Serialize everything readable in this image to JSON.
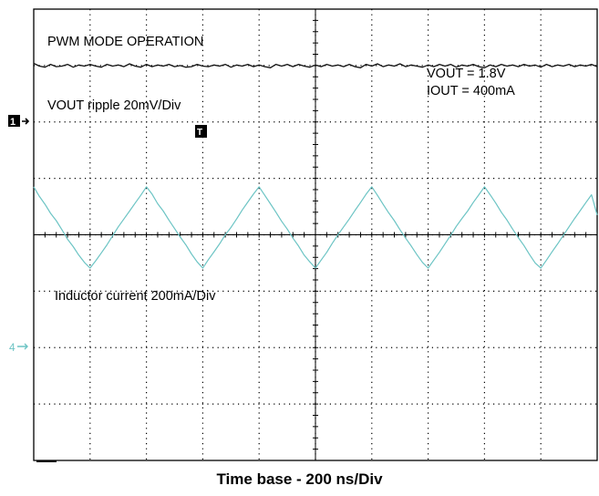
{
  "chart_data": {
    "type": "line",
    "title": "",
    "xlabel": "Time base - 200 ns/Div",
    "ylabel": "",
    "grid": true,
    "x_unit": "ns",
    "x": [
      0,
      20,
      40,
      60,
      80,
      100,
      120,
      140,
      160,
      180,
      200,
      220,
      240,
      260,
      280,
      300,
      320,
      340,
      360,
      380,
      400,
      420,
      440,
      460,
      480,
      500,
      520,
      540,
      560,
      580,
      600,
      620,
      640,
      660,
      680,
      700,
      720,
      740,
      760,
      780,
      800,
      820,
      840,
      860,
      880,
      900,
      920,
      940,
      960,
      980,
      1000,
      1020,
      1040,
      1060,
      1080,
      1100,
      1120,
      1140,
      1160,
      1180,
      1200,
      1220,
      1240,
      1260,
      1280,
      1300,
      1320,
      1340,
      1360,
      1380,
      1400,
      1420,
      1440,
      1460,
      1480,
      1500,
      1520,
      1540,
      1560,
      1580,
      1600,
      1620,
      1640,
      1660,
      1680,
      1700,
      1720,
      1740,
      1760,
      1780,
      1800,
      1820,
      1840,
      1860,
      1880,
      1900,
      1920,
      1940,
      1960,
      1980,
      2000
    ],
    "annotations": [
      "PWM MODE OPERATION",
      "VOUT = 1.8V",
      "IOUT = 400mA",
      "VOUT  ripple 20mV/Div",
      "Inductor current 200mA/Div"
    ],
    "markers": [
      "1",
      "4",
      "T"
    ],
    "series": [
      {
        "name": "VOUT  ripple 20mV/Div",
        "unit": "div",
        "values": [
          3.04,
          2.99,
          2.97,
          3.02,
          2.98,
          2.99,
          3.02,
          2.97,
          3.01,
          2.99,
          3.02,
          2.99,
          2.97,
          3.02,
          2.99,
          3.01,
          2.98,
          3.03,
          2.99,
          2.97,
          3.02,
          2.98,
          3.01,
          2.99,
          3.02,
          2.98,
          3.0,
          2.97,
          2.98,
          3.02,
          2.99,
          2.98,
          3.01,
          2.99,
          3.02,
          2.97,
          3.01,
          2.99,
          3.02,
          2.98,
          3.01,
          2.98,
          2.96,
          3.02,
          2.99,
          3.02,
          2.98,
          3.02,
          2.99,
          2.97,
          3.01,
          2.98,
          3.02,
          2.99,
          3.01,
          2.98,
          3.02,
          2.98,
          2.96,
          3.02,
          2.99,
          3.03,
          2.98,
          3.01,
          2.99,
          3.03,
          2.98,
          3.01,
          2.99,
          2.97,
          3.01,
          2.98,
          3.02,
          2.99,
          3.02,
          2.97,
          3.01,
          2.99,
          3.02,
          2.98,
          2.96,
          3.01,
          2.98,
          3.02,
          2.99,
          3.01,
          2.98,
          3.02,
          2.99,
          3.01,
          2.97,
          3.02,
          2.98,
          3.01,
          2.99,
          3.02,
          2.98,
          3.01,
          2.99,
          3.02,
          2.98
        ]
      },
      {
        "name": "Inductor current 200mA/Div",
        "unit": "div",
        "values": [
          0.85,
          0.68,
          0.54,
          0.38,
          0.25,
          0.09,
          -0.08,
          -0.21,
          -0.36,
          -0.49,
          -0.59,
          -0.46,
          -0.32,
          -0.18,
          -0.02,
          0.14,
          0.28,
          0.42,
          0.56,
          0.7,
          0.85,
          0.72,
          0.55,
          0.42,
          0.26,
          0.11,
          -0.04,
          -0.18,
          -0.34,
          -0.48,
          -0.59,
          -0.44,
          -0.3,
          -0.16,
          0.0,
          0.13,
          0.28,
          0.44,
          0.58,
          0.72,
          0.85,
          0.7,
          0.55,
          0.4,
          0.24,
          0.1,
          -0.06,
          -0.2,
          -0.36,
          -0.48,
          -0.59,
          -0.45,
          -0.31,
          -0.15,
          0.0,
          0.14,
          0.28,
          0.43,
          0.57,
          0.72,
          0.85,
          0.7,
          0.54,
          0.39,
          0.25,
          0.09,
          -0.06,
          -0.2,
          -0.35,
          -0.49,
          -0.59,
          -0.45,
          -0.31,
          -0.16,
          -0.01,
          0.15,
          0.29,
          0.42,
          0.57,
          0.71,
          0.85,
          0.71,
          0.56,
          0.4,
          0.26,
          0.1,
          -0.05,
          -0.19,
          -0.35,
          -0.5,
          -0.59,
          -0.45,
          -0.3,
          -0.16,
          -0.01,
          0.14,
          0.29,
          0.43,
          0.57,
          0.71,
          0.35
        ]
      }
    ]
  },
  "colors": {
    "background": "#ffffff",
    "grid": "#000000",
    "ch1": "#111111",
    "ch4": "#6cc4c4"
  }
}
